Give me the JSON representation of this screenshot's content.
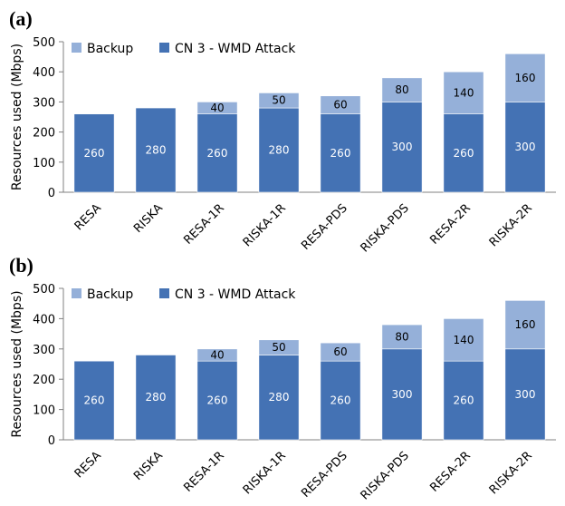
{
  "chart_data": [
    {
      "type": "bar",
      "stacked": true,
      "panel_label": "(a)",
      "categories": [
        "RESA",
        "RISKA",
        "RESA-1R",
        "RISKA-1R",
        "RESA-PDS",
        "RISKA-PDS",
        "RESA-2R",
        "RISKA-2R"
      ],
      "series": [
        {
          "name": "CN 3 - WMD Attack",
          "values": [
            260,
            280,
            260,
            280,
            260,
            300,
            260,
            300
          ],
          "color": "#4472b4"
        },
        {
          "name": "Backup",
          "values": [
            0,
            0,
            40,
            50,
            60,
            80,
            140,
            160
          ],
          "color": "#95b0d9"
        }
      ],
      "ylabel": "Resources used (Mbps)",
      "ylim": [
        0,
        500
      ],
      "yticks": [
        "0",
        "100",
        "200",
        "300",
        "400",
        "500"
      ],
      "grid": false,
      "legend": "top-left"
    },
    {
      "type": "bar",
      "stacked": true,
      "panel_label": "(b)",
      "categories": [
        "RESA",
        "RISKA",
        "RESA-1R",
        "RISKA-1R",
        "RESA-PDS",
        "RISKA-PDS",
        "RESA-2R",
        "RISKA-2R"
      ],
      "series": [
        {
          "name": "CN 3 - WMD Attack",
          "values": [
            260,
            280,
            260,
            280,
            260,
            300,
            260,
            300
          ],
          "color": "#4472b4"
        },
        {
          "name": "Backup",
          "values": [
            0,
            0,
            40,
            50,
            60,
            80,
            140,
            160
          ],
          "color": "#95b0d9"
        }
      ],
      "ylabel": "Resources used (Mbps)",
      "ylim": [
        0,
        500
      ],
      "yticks": [
        "0",
        "100",
        "200",
        "300",
        "400",
        "500"
      ],
      "grid": false,
      "legend": "top-left"
    }
  ]
}
